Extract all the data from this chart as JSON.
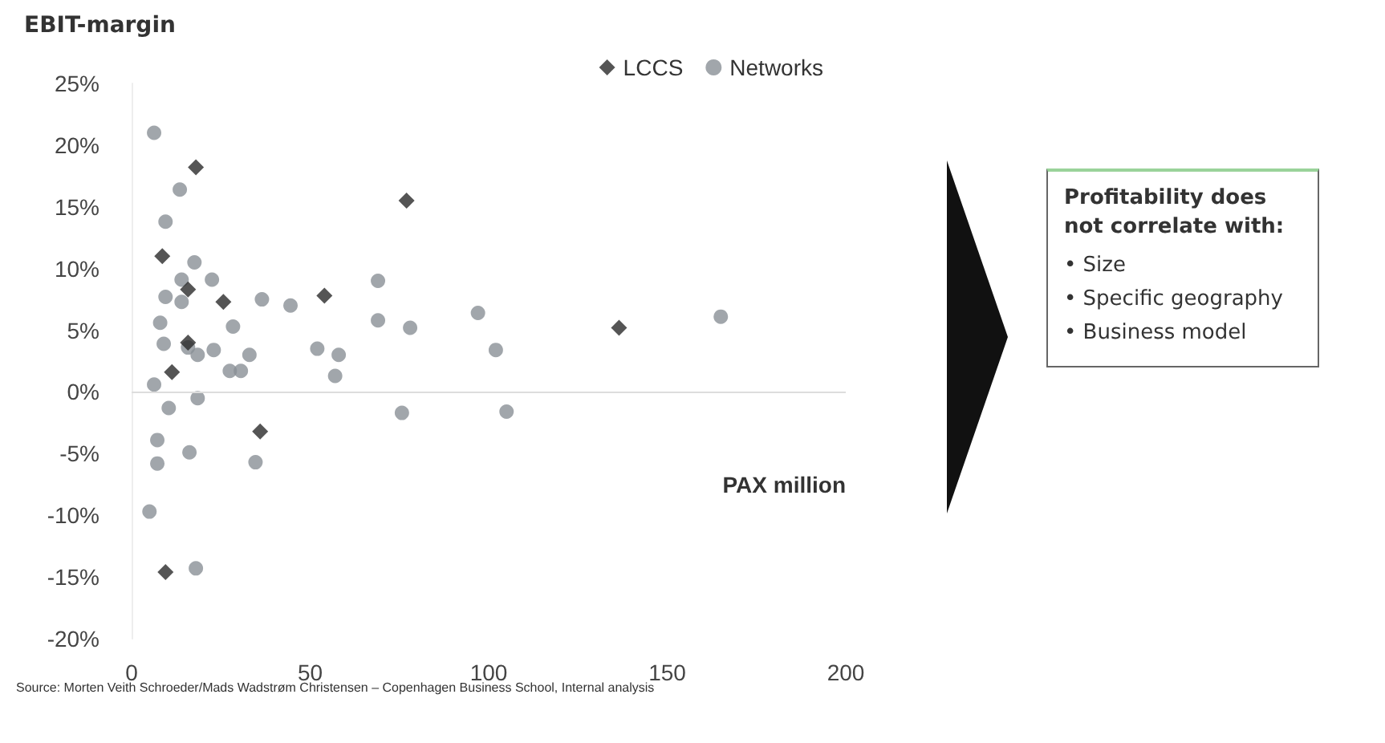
{
  "chart_data": {
    "type": "scatter",
    "xlabel": "PAX million",
    "ylabel": "EBIT-margin",
    "xlim": [
      0,
      200
    ],
    "xticks": [
      0,
      50,
      100,
      150,
      200
    ],
    "ylim": [
      -20,
      25
    ],
    "yticks": [
      {
        "value": -20,
        "label": "-20%"
      },
      {
        "value": -15,
        "label": "-15%"
      },
      {
        "value": -10,
        "label": "-10%"
      },
      {
        "value": -5,
        "label": "-5%"
      },
      {
        "value": 0,
        "label": "0%"
      },
      {
        "value": 5,
        "label": "5%"
      },
      {
        "value": 10,
        "label": "10%"
      },
      {
        "value": 15,
        "label": "15%"
      },
      {
        "value": 20,
        "label": "20%"
      },
      {
        "value": 25,
        "label": "25%"
      }
    ],
    "grid": false,
    "legend": "top right",
    "ref_lines": [
      {
        "axis": "y",
        "value": 0,
        "color": "#dddddd"
      }
    ],
    "series": [
      {
        "name": "LCCS",
        "color": "#2b2b2b",
        "marker": "diamond",
        "x": [
          18,
          77,
          8.6,
          15.8,
          25.7,
          54,
          15.8,
          11.3,
          136.5,
          36,
          9.5
        ],
        "values": [
          18.2,
          15.5,
          11,
          8.3,
          7.3,
          7.8,
          4,
          1.6,
          5.2,
          -3.2,
          -14.6
        ]
      },
      {
        "name": "Networks",
        "color": "#8a9096",
        "marker": "circle",
        "x": [
          6.3,
          13.5,
          9.5,
          17.6,
          14,
          22.5,
          9.5,
          14,
          36.5,
          44.5,
          69,
          8,
          28.4,
          69,
          78,
          97,
          9,
          15.8,
          18.5,
          23,
          33,
          52,
          58,
          57,
          27.5,
          30.6,
          6.3,
          18.5,
          10.4,
          75.7,
          7.2,
          16.2,
          7.2,
          34.7,
          5,
          165,
          102,
          105,
          18
        ],
        "values": [
          21,
          16.4,
          13.8,
          10.5,
          9.1,
          9.1,
          7.7,
          7.3,
          7.5,
          7,
          9,
          5.6,
          5.3,
          5.8,
          5.2,
          6.4,
          3.9,
          3.6,
          3,
          3.4,
          3,
          3.5,
          3,
          1.3,
          1.7,
          1.7,
          0.6,
          -0.5,
          -1.3,
          -1.7,
          -3.9,
          -4.9,
          -5.8,
          -5.7,
          -9.7,
          6.1,
          3.4,
          -1.6,
          -14.3
        ]
      }
    ],
    "annotations": [
      "Profitability does not correlate with:",
      "• Size",
      "• Specific geography",
      "• Business model",
      "Source: Morten Veith Schroeder/Mads Wadstrøm Christensen – Copenhagen Business School, Internal analysis"
    ]
  }
}
